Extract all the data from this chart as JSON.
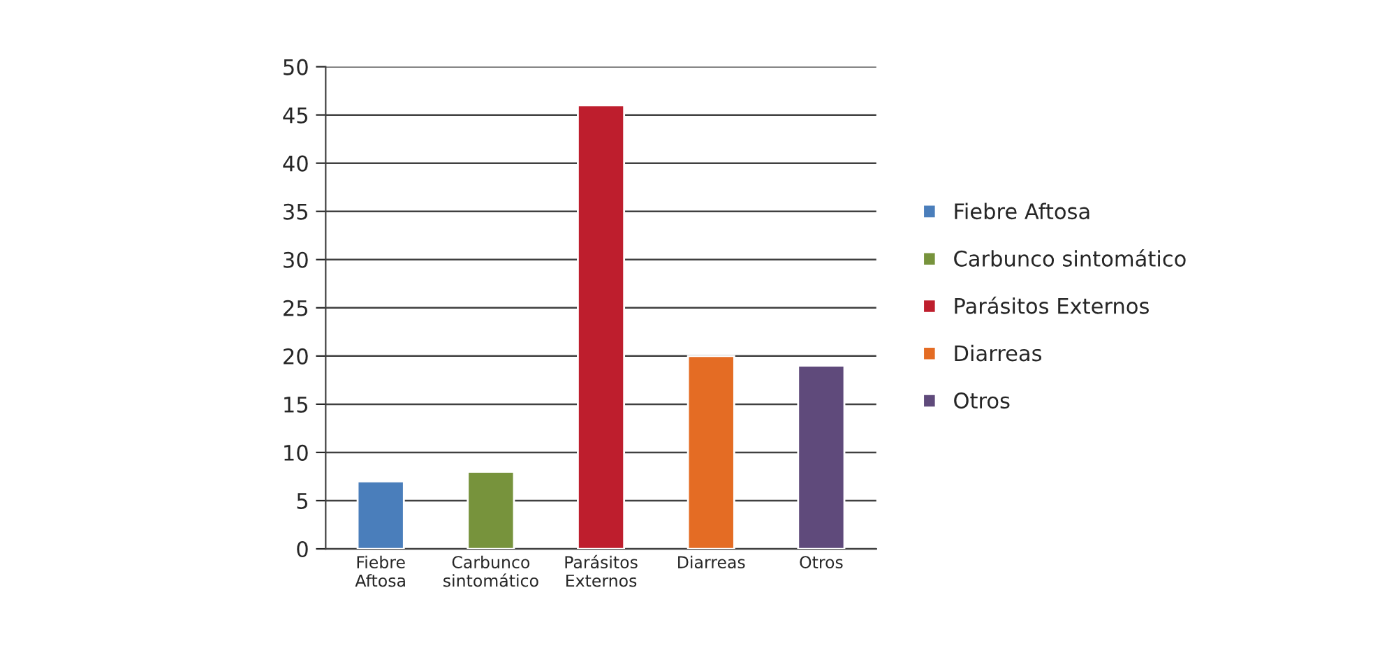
{
  "chart_data": {
    "type": "bar",
    "categories": [
      "Fiebre Aftosa",
      "Carbunco sintomático",
      "Parásitos Externos",
      "Diarreas",
      "Otros"
    ],
    "series": [
      {
        "name": "Fiebre Aftosa",
        "color": "#4a7ebb",
        "values": [
          7,
          null,
          null,
          null,
          null
        ]
      },
      {
        "name": "Carbunco sintomático",
        "color": "#77933c",
        "values": [
          null,
          8,
          null,
          null,
          null
        ]
      },
      {
        "name": "Parásitos Externos",
        "color": "#be1e2d",
        "values": [
          null,
          null,
          46,
          null,
          null
        ]
      },
      {
        "name": "Diarreas",
        "color": "#e46c24",
        "values": [
          null,
          null,
          null,
          20,
          null
        ]
      },
      {
        "name": "Otros",
        "color": "#5f4a7b",
        "values": [
          null,
          null,
          null,
          null,
          19
        ]
      }
    ],
    "ylim": [
      0,
      50
    ],
    "yticks": [
      0,
      5,
      10,
      15,
      20,
      25,
      30,
      35,
      40,
      45,
      50
    ],
    "grid": "y",
    "legend": "right"
  }
}
